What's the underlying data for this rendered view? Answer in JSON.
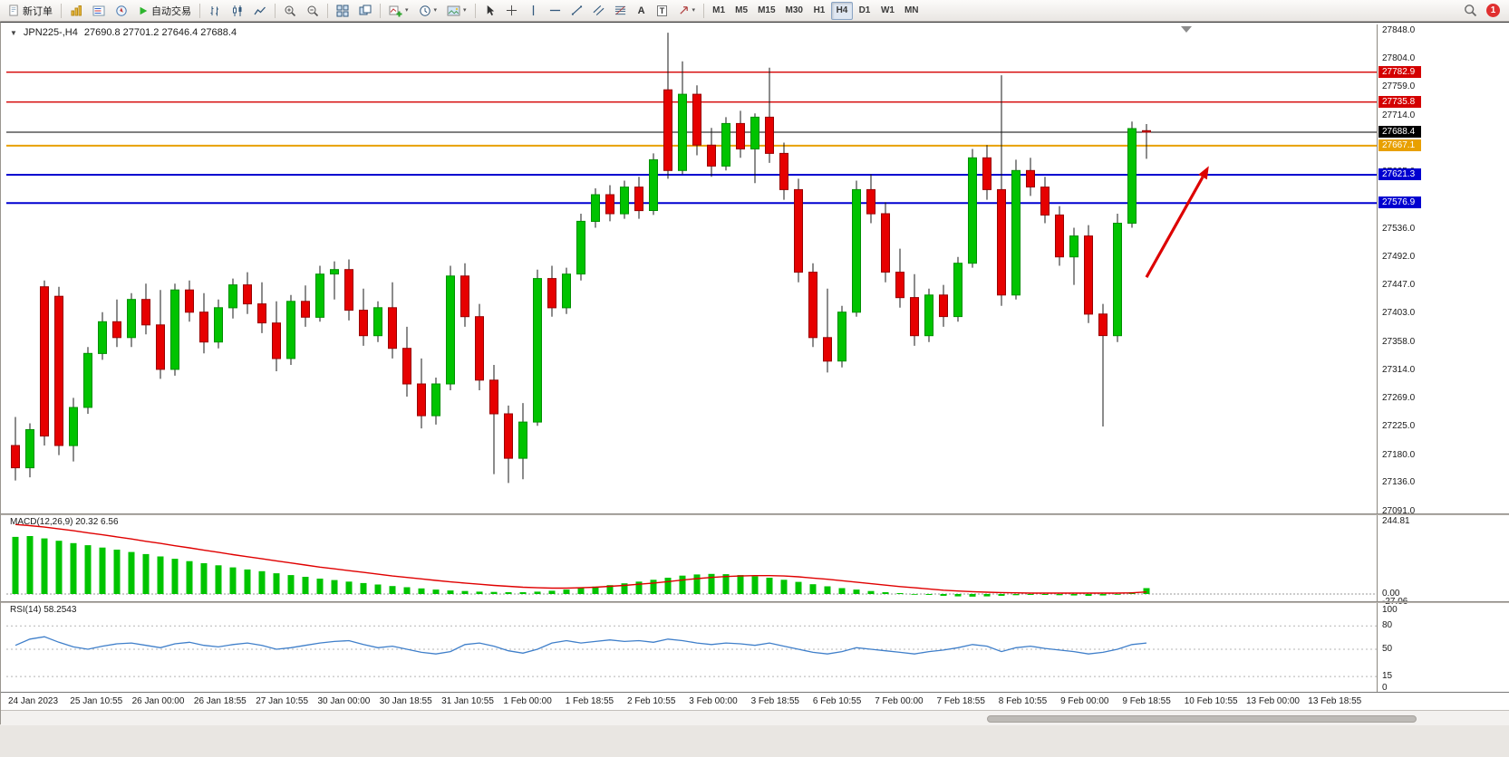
{
  "toolbar": {
    "new_order": "新订单",
    "autotrading": "自动交易",
    "timeframes": [
      "M1",
      "M5",
      "M15",
      "M30",
      "H1",
      "H4",
      "D1",
      "W1",
      "MN"
    ],
    "active_timeframe": "H4",
    "notification_count": "1"
  },
  "icons": {
    "caret": "▾",
    "oct_arrow": "▼",
    "text_tool": "A",
    "label_tool": "T"
  },
  "chart": {
    "symbol_title": "JPN225-,H4",
    "ohlc_text": "27690.8 27701.2 27646.4 27688.4",
    "macd_label": "MACD(12,26,9) 20.32 6.56",
    "rsi_label": "RSI(14) 58.2543"
  },
  "chart_data": {
    "type": "candlestick",
    "symbol": "JPN225-",
    "timeframe": "H4",
    "current_bar": {
      "open": 27690.8,
      "high": 27701.2,
      "low": 27646.4,
      "close": 27688.4
    },
    "ylim": [
      27091.0,
      27848.0
    ],
    "price_ticks": [
      "27848.0",
      "27804.0",
      "27759.0",
      "27714.0",
      "27669.0",
      "27625.0",
      "27580.0",
      "27536.0",
      "27492.0",
      "27447.0",
      "27403.0",
      "27358.0",
      "27314.0",
      "27269.0",
      "27225.0",
      "27180.0",
      "27136.0",
      "27091.0"
    ],
    "time_labels": [
      "24 Jan 2023",
      "25 Jan 10:55",
      "26 Jan 00:00",
      "26 Jan 18:55",
      "27 Jan 10:55",
      "30 Jan 00:00",
      "30 Jan 18:55",
      "31 Jan 10:55",
      "1 Feb 00:00",
      "1 Feb 18:55",
      "2 Feb 10:55",
      "3 Feb 00:00",
      "3 Feb 18:55",
      "6 Feb 10:55",
      "7 Feb 00:00",
      "7 Feb 18:55",
      "8 Feb 10:55",
      "9 Feb 00:00",
      "9 Feb 18:55",
      "10 Feb 10:55",
      "13 Feb 00:00",
      "13 Feb 18:55"
    ],
    "colors": {
      "up": "#00c300",
      "up_border": "#008f00",
      "down": "#e60000",
      "down_border": "#990000",
      "wick": "#1a1a1a",
      "rsi_line": "#3f7fca",
      "macd_hist": "#00c400",
      "macd_signal": "#e00000"
    },
    "hlines": [
      {
        "name": "resistance-line-upper",
        "price": 27782.9,
        "label": "27782.9",
        "color": "#d40000",
        "width": 1.4
      },
      {
        "name": "resistance-line-lower",
        "price": 27735.8,
        "label": "27735.8",
        "color": "#d40000",
        "width": 1.4
      },
      {
        "name": "current-price-line",
        "price": 27688.4,
        "label": "27688.4",
        "color": "#000000",
        "width": 1
      },
      {
        "name": "support-line-orange",
        "price": 27667.1,
        "label": "27667.1",
        "color": "#e8a000",
        "width": 2
      },
      {
        "name": "support-line-blue-upper",
        "price": 27621.3,
        "label": "27621.3",
        "color": "#0000d0",
        "width": 2
      },
      {
        "name": "support-line-blue-lower",
        "price": 27576.9,
        "label": "27576.9",
        "color": "#0000d0",
        "width": 2
      }
    ],
    "arrow": {
      "x1_index": 78,
      "price1": 27460,
      "x2_index": 82.3,
      "price2": 27635,
      "color": "#dd0000"
    },
    "candles": [
      [
        27195,
        27240,
        27140,
        27160
      ],
      [
        27160,
        27230,
        27145,
        27220
      ],
      [
        27445,
        27455,
        27195,
        27210
      ],
      [
        27430,
        27445,
        27180,
        27195
      ],
      [
        27195,
        27270,
        27170,
        27255
      ],
      [
        27255,
        27350,
        27245,
        27340
      ],
      [
        27340,
        27405,
        27330,
        27390
      ],
      [
        27390,
        27425,
        27350,
        27365
      ],
      [
        27365,
        27435,
        27350,
        27425
      ],
      [
        27425,
        27450,
        27370,
        27385
      ],
      [
        27385,
        27440,
        27300,
        27315
      ],
      [
        27315,
        27450,
        27305,
        27440
      ],
      [
        27440,
        27455,
        27390,
        27405
      ],
      [
        27405,
        27435,
        27340,
        27358
      ],
      [
        27358,
        27425,
        27348,
        27412
      ],
      [
        27412,
        27458,
        27395,
        27448
      ],
      [
        27448,
        27468,
        27402,
        27418
      ],
      [
        27418,
        27452,
        27372,
        27388
      ],
      [
        27388,
        27422,
        27312,
        27332
      ],
      [
        27332,
        27432,
        27322,
        27422
      ],
      [
        27422,
        27447,
        27382,
        27397
      ],
      [
        27397,
        27478,
        27390,
        27465
      ],
      [
        27465,
        27485,
        27425,
        27472
      ],
      [
        27472,
        27488,
        27392,
        27408
      ],
      [
        27408,
        27442,
        27352,
        27368
      ],
      [
        27368,
        27422,
        27358,
        27412
      ],
      [
        27412,
        27452,
        27332,
        27348
      ],
      [
        27348,
        27382,
        27272,
        27292
      ],
      [
        27292,
        27332,
        27222,
        27242
      ],
      [
        27242,
        27302,
        27228,
        27292
      ],
      [
        27292,
        27478,
        27282,
        27462
      ],
      [
        27462,
        27482,
        27382,
        27398
      ],
      [
        27398,
        27418,
        27282,
        27298
      ],
      [
        27298,
        27322,
        27150,
        27245
      ],
      [
        27245,
        27258,
        27136,
        27175
      ],
      [
        27175,
        27262,
        27142,
        27232
      ],
      [
        27232,
        27472,
        27226,
        27458
      ],
      [
        27458,
        27478,
        27398,
        27412
      ],
      [
        27412,
        27475,
        27402,
        27465
      ],
      [
        27465,
        27560,
        27455,
        27548
      ],
      [
        27548,
        27600,
        27538,
        27590
      ],
      [
        27590,
        27605,
        27548,
        27560
      ],
      [
        27560,
        27612,
        27552,
        27602
      ],
      [
        27602,
        27618,
        27552,
        27565
      ],
      [
        27565,
        27655,
        27558,
        27645
      ],
      [
        27755,
        27845,
        27615,
        27628
      ],
      [
        27628,
        27800,
        27622,
        27748
      ],
      [
        27748,
        27762,
        27652,
        27668
      ],
      [
        27668,
        27695,
        27618,
        27635
      ],
      [
        27635,
        27712,
        27628,
        27702
      ],
      [
        27702,
        27722,
        27648,
        27662
      ],
      [
        27662,
        27718,
        27608,
        27712
      ],
      [
        27712,
        27790,
        27640,
        27655
      ],
      [
        27655,
        27672,
        27582,
        27598
      ],
      [
        27598,
        27615,
        27452,
        27468
      ],
      [
        27468,
        27482,
        27350,
        27365
      ],
      [
        27365,
        27442,
        27310,
        27328
      ],
      [
        27328,
        27415,
        27318,
        27405
      ],
      [
        27405,
        27612,
        27398,
        27598
      ],
      [
        27598,
        27622,
        27545,
        27560
      ],
      [
        27560,
        27578,
        27452,
        27468
      ],
      [
        27468,
        27505,
        27412,
        27428
      ],
      [
        27428,
        27465,
        27352,
        27368
      ],
      [
        27368,
        27442,
        27358,
        27432
      ],
      [
        27432,
        27448,
        27382,
        27398
      ],
      [
        27398,
        27492,
        27390,
        27482
      ],
      [
        27482,
        27662,
        27475,
        27648
      ],
      [
        27648,
        27668,
        27582,
        27598
      ],
      [
        27598,
        27778,
        27415,
        27432
      ],
      [
        27432,
        27645,
        27425,
        27628
      ],
      [
        27628,
        27648,
        27588,
        27602
      ],
      [
        27602,
        27618,
        27545,
        27558
      ],
      [
        27558,
        27572,
        27478,
        27492
      ],
      [
        27492,
        27538,
        27448,
        27525
      ],
      [
        27525,
        27542,
        27388,
        27402
      ],
      [
        27402,
        27418,
        27225,
        27368
      ],
      [
        27368,
        27560,
        27358,
        27545
      ],
      [
        27545,
        27705,
        27538,
        27694
      ],
      [
        27690.8,
        27701.2,
        27646.4,
        27688.4
      ]
    ],
    "macd": {
      "value": 20.32,
      "signal_value": 6.56,
      "params": [
        12,
        26,
        9
      ],
      "scale_max": 244.81,
      "scale_min": -27.06,
      "scale_labels": [
        "244.81",
        "0.00",
        "-27.06"
      ],
      "histogram": [
        193,
        196,
        188,
        180,
        172,
        165,
        157,
        150,
        142,
        135,
        127,
        119,
        111,
        104,
        97,
        90,
        83,
        77,
        70,
        64,
        58,
        52,
        47,
        42,
        37,
        32,
        27,
        23,
        19,
        15,
        12,
        10,
        8,
        7,
        6,
        6,
        8,
        11,
        15,
        20,
        25,
        30,
        36,
        42,
        48,
        55,
        62,
        66,
        68,
        67,
        64,
        60,
        55,
        48,
        41,
        33,
        26,
        20,
        15,
        10,
        6,
        3,
        0,
        -3,
        -6,
        -8,
        -9,
        -8,
        -6,
        -4,
        -3,
        -3,
        -4,
        -5,
        -6,
        -5,
        -2,
        6,
        20
      ],
      "signal": [
        235,
        231,
        226,
        220,
        214,
        207,
        200,
        193,
        186,
        178,
        171,
        163,
        156,
        148,
        141,
        133,
        126,
        119,
        112,
        105,
        98,
        91,
        85,
        79,
        73,
        67,
        61,
        56,
        51,
        46,
        41,
        37,
        33,
        29,
        26,
        23,
        21,
        20,
        20,
        21,
        23,
        26,
        29,
        33,
        37,
        42,
        47,
        52,
        56,
        59,
        61,
        62,
        62,
        61,
        58,
        54,
        50,
        45,
        40,
        35,
        30,
        25,
        21,
        17,
        13,
        10,
        8,
        6,
        5,
        4,
        3,
        3,
        3,
        3,
        3,
        3,
        3,
        4,
        7
      ]
    },
    "rsi": {
      "value": 58.2543,
      "period": 14,
      "levels": [
        80,
        50,
        15
      ],
      "scale_labels": [
        "100",
        "80",
        "50",
        "15",
        "0"
      ],
      "values": [
        55,
        63,
        66,
        59,
        53,
        50,
        54,
        57,
        58,
        55,
        52,
        57,
        59,
        55,
        53,
        56,
        58,
        55,
        50,
        52,
        55,
        58,
        60,
        61,
        56,
        52,
        54,
        50,
        46,
        44,
        47,
        56,
        58,
        54,
        48,
        45,
        50,
        58,
        61,
        58,
        60,
        62,
        60,
        61,
        59,
        63,
        61,
        58,
        56,
        58,
        57,
        55,
        58,
        54,
        50,
        46,
        44,
        47,
        52,
        50,
        48,
        46,
        44,
        47,
        49,
        52,
        56,
        54,
        47,
        52,
        54,
        51,
        49,
        47,
        44,
        46,
        50,
        56,
        58
      ]
    }
  }
}
